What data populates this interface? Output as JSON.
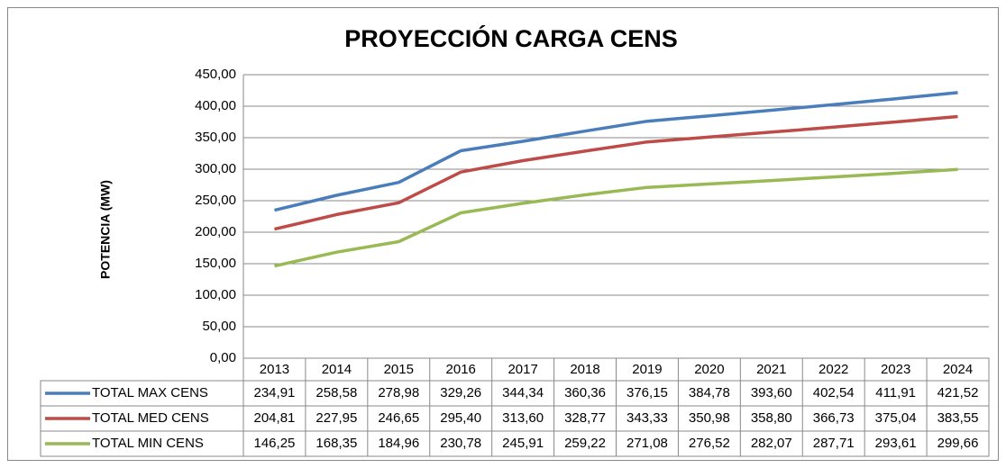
{
  "chart_data": {
    "type": "line",
    "title": "PROYECCIÓN CARGA CENS",
    "y_label": "POTENCIA (MW)",
    "categories": [
      "2013",
      "2014",
      "2015",
      "2016",
      "2017",
      "2018",
      "2019",
      "2020",
      "2021",
      "2022",
      "2023",
      "2024"
    ],
    "series": [
      {
        "name": "TOTAL MAX CENS",
        "color": "#4a7ebb",
        "values": [
          234.91,
          258.58,
          278.98,
          329.26,
          344.34,
          360.36,
          376.15,
          384.78,
          393.6,
          402.54,
          411.91,
          421.52
        ],
        "value_labels": [
          "234,91",
          "258,58",
          "278,98",
          "329,26",
          "344,34",
          "360,36",
          "376,15",
          "384,78",
          "393,60",
          "402,54",
          "411,91",
          "421,52"
        ]
      },
      {
        "name": "TOTAL MED CENS",
        "color": "#be4b48",
        "values": [
          204.81,
          227.95,
          246.65,
          295.4,
          313.6,
          328.77,
          343.33,
          350.98,
          358.8,
          366.73,
          375.04,
          383.55
        ],
        "value_labels": [
          "204,81",
          "227,95",
          "246,65",
          "295,40",
          "313,60",
          "328,77",
          "343,33",
          "350,98",
          "358,80",
          "366,73",
          "375,04",
          "383,55"
        ]
      },
      {
        "name": "TOTAL MIN CENS",
        "color": "#98b954",
        "values": [
          146.25,
          168.35,
          184.96,
          230.78,
          245.91,
          259.22,
          271.08,
          276.52,
          282.07,
          287.71,
          293.61,
          299.66
        ],
        "value_labels": [
          "146,25",
          "168,35",
          "184,96",
          "230,78",
          "245,91",
          "259,22",
          "271,08",
          "276,52",
          "282,07",
          "287,71",
          "293,61",
          "299,66"
        ]
      }
    ],
    "ylim": [
      0,
      450
    ],
    "yticks": [
      {
        "value": 0,
        "label": "0,00"
      },
      {
        "value": 50,
        "label": "50,00"
      },
      {
        "value": 100,
        "label": "100,00"
      },
      {
        "value": 150,
        "label": "150,00"
      },
      {
        "value": 200,
        "label": "200,00"
      },
      {
        "value": 250,
        "label": "250,00"
      },
      {
        "value": 300,
        "label": "300,00"
      },
      {
        "value": 350,
        "label": "350,00"
      },
      {
        "value": 400,
        "label": "400,00"
      },
      {
        "value": 450,
        "label": "450,00"
      }
    ],
    "grid": true
  }
}
